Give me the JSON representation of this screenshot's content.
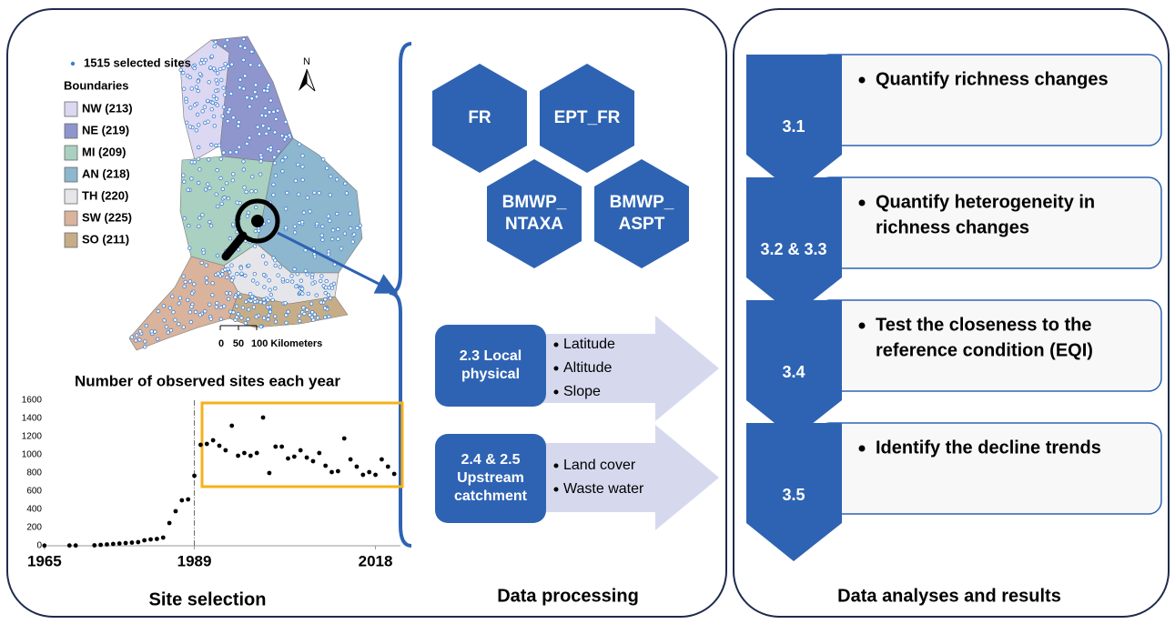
{
  "site_selection": {
    "map": {
      "sites_legend": "1515 selected sites",
      "boundaries_title": "Boundaries",
      "regions": [
        {
          "label": "NW (213)",
          "color": "#dcd8f2"
        },
        {
          "label": "NE (219)",
          "color": "#8e96cd"
        },
        {
          "label": "MI (209)",
          "color": "#a9d0c1"
        },
        {
          "label": "AN (218)",
          "color": "#8db6cf"
        },
        {
          "label": "TH (220)",
          "color": "#e6e6ea"
        },
        {
          "label": "SW (225)",
          "color": "#d9b39c"
        },
        {
          "label": "SO (211)",
          "color": "#c6ad88"
        }
      ],
      "north": "N",
      "scale_labels": [
        "0",
        "50",
        "100 Kilometers"
      ]
    },
    "label": "Site selection"
  },
  "chart_data": {
    "type": "scatter",
    "title": "Number of observed sites each year",
    "x": [
      1965,
      1969,
      1970,
      1973,
      1974,
      1975,
      1976,
      1977,
      1978,
      1979,
      1980,
      1981,
      1982,
      1983,
      1984,
      1985,
      1986,
      1987,
      1988,
      1989,
      1990,
      1991,
      1992,
      1993,
      1994,
      1995,
      1996,
      1997,
      1998,
      1999,
      2000,
      2001,
      2002,
      2003,
      2004,
      2005,
      2006,
      2007,
      2008,
      2009,
      2010,
      2011,
      2012,
      2013,
      2014,
      2015,
      2016,
      2017,
      2018,
      2019,
      2020,
      2021
    ],
    "values": [
      2,
      3,
      3,
      5,
      10,
      15,
      20,
      25,
      30,
      35,
      40,
      60,
      70,
      75,
      90,
      250,
      380,
      500,
      510,
      770,
      1110,
      1120,
      1160,
      1100,
      1050,
      1320,
      990,
      1020,
      990,
      1020,
      1410,
      800,
      1090,
      1090,
      960,
      980,
      1050,
      970,
      930,
      1020,
      880,
      810,
      820,
      1180,
      950,
      870,
      780,
      810,
      780,
      950,
      870,
      790
    ],
    "color": "#000000",
    "xlim": [
      1964,
      2022
    ],
    "ylim": [
      0,
      1600
    ],
    "xticks": [
      1965,
      1989,
      2018
    ],
    "yticks": [
      0,
      200,
      400,
      600,
      800,
      1000,
      1200,
      1400,
      1600
    ],
    "highlight_color": "#f5b21b"
  },
  "data_processing": {
    "indices": [
      {
        "lines": [
          "FR"
        ]
      },
      {
        "lines": [
          "EPT_FR"
        ]
      },
      {
        "lines": [
          "BMWP_",
          "NTAXA"
        ]
      },
      {
        "lines": [
          "BMWP_",
          "ASPT"
        ]
      }
    ],
    "factors": [
      {
        "lines": [
          "2.3 Local",
          "physical"
        ],
        "items": [
          "Latitude",
          "Altitude",
          "Slope"
        ]
      },
      {
        "lines": [
          "2.4 & 2.5",
          "Upstream",
          "catchment"
        ],
        "items": [
          "Land cover",
          "Waste water"
        ]
      }
    ],
    "label": "Data processing"
  },
  "analyses": {
    "steps": [
      {
        "number": "3.1",
        "lines": [
          "Quantify richness changes"
        ]
      },
      {
        "number": "3.2 & 3.3",
        "lines": [
          "Quantify heterogeneity in",
          "richness changes"
        ]
      },
      {
        "number": "3.4",
        "lines": [
          "Test the closeness to the",
          "reference condition (EQI)"
        ]
      },
      {
        "number": "3.5",
        "lines": [
          "Identify the decline trends"
        ]
      }
    ],
    "label": "Data analyses and results"
  }
}
